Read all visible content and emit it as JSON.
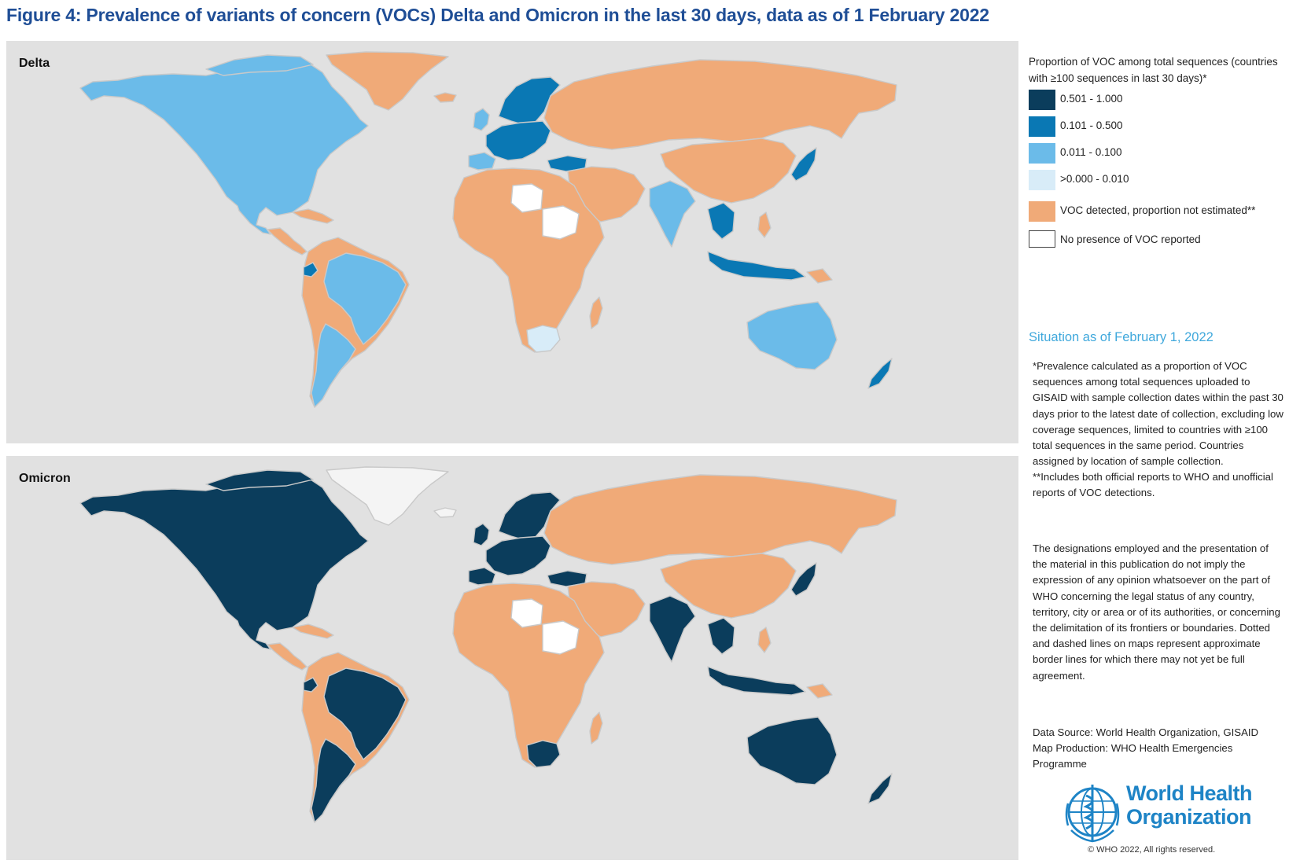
{
  "title": "Figure 4: Prevalence of variants of concern (VOCs) Delta and Omicron in the last 30 days, data as of 1 February 2022",
  "panels": {
    "delta": {
      "label": "Delta"
    },
    "omicron": {
      "label": "Omicron"
    }
  },
  "legend": {
    "title": "Proportion of VOC among total sequences (countries with ≥100 sequences in last 30 days)*",
    "items": [
      {
        "label": "0.501 - 1.000",
        "color": "#0b3d5c"
      },
      {
        "label": "0.101 - 0.500",
        "color": "#0a78b4"
      },
      {
        "label": "0.011 - 0.100",
        "color": "#6bbbe9"
      },
      {
        "label": ">0.000 - 0.010",
        "color": "#d8ecf8"
      },
      {
        "label": "VOC detected, proportion not estimated**",
        "color": "#f0aa78"
      },
      {
        "label": "No presence of VOC reported",
        "color": "#ffffff"
      }
    ]
  },
  "colors": {
    "ocean": "#e1e1e1",
    "not_applicable": "#f4f4f4",
    "border": "#c9c9c9"
  },
  "map_data": {
    "delta": {
      "north_america": "0.011 - 0.100",
      "greenland": "VOC detected, proportion not estimated**",
      "central_america_caribbean": "VOC detected, proportion not estimated**",
      "south_america": "VOC detected, proportion not estimated**",
      "brazil": "0.011 - 0.100",
      "argentina_chile": "0.011 - 0.100",
      "ecuador": "0.101 - 0.500",
      "uk_ireland": "0.011 - 0.100",
      "western_europe": "0.101 - 0.500",
      "nordics": "0.101 - 0.500",
      "iberia": "0.011 - 0.100",
      "russia": "VOC detected, proportion not estimated**",
      "turkey": "0.101 - 0.500",
      "middle_east": "VOC detected, proportion not estimated**",
      "africa": "VOC detected, proportion not estimated**",
      "south_africa": ">0.000 - 0.010",
      "libya": "No presence of VOC reported",
      "chad_sudan": "No presence of VOC reported",
      "india": "0.011 - 0.100",
      "china": "VOC detected, proportion not estimated**",
      "japan": "0.101 - 0.500",
      "southeast_asia": "0.101 - 0.500",
      "australia": "0.011 - 0.100",
      "new_zealand": "0.101 - 0.500"
    },
    "omicron": {
      "north_america": "0.501 - 1.000",
      "greenland": "not applicable",
      "central_america_caribbean": "VOC detected, proportion not estimated**",
      "south_america": "VOC detected, proportion not estimated**",
      "brazil": "0.501 - 1.000",
      "argentina_chile": "0.501 - 1.000",
      "ecuador": "0.501 - 1.000",
      "uk_ireland": "0.501 - 1.000",
      "western_europe": "0.501 - 1.000",
      "nordics": "0.501 - 1.000",
      "iberia": "0.501 - 1.000",
      "russia": "VOC detected, proportion not estimated**",
      "turkey": "0.501 - 1.000",
      "middle_east": "VOC detected, proportion not estimated**",
      "africa": "VOC detected, proportion not estimated**",
      "south_africa": "0.501 - 1.000",
      "libya": "No presence of VOC reported",
      "chad_sudan": "No presence of VOC reported",
      "india": "0.501 - 1.000",
      "china": "VOC detected, proportion not estimated**",
      "japan": "0.501 - 1.000",
      "southeast_asia": "0.501 - 1.000",
      "australia": "0.501 - 1.000",
      "new_zealand": "0.501 - 1.000"
    }
  },
  "situation": "Situation as of February 1, 2022",
  "notes": {
    "footnote_1": "*Prevalence calculated as a proportion of VOC sequences among total sequences uploaded to GISAID with sample collection dates within the past 30 days prior to the latest date of collection, excluding low coverage sequences, limited to countries with ≥100 total sequences in the same period. Countries assigned by location of sample collection.",
    "footnote_2": "**Includes both official reports to WHO and unofficial reports of VOC detections.",
    "disclaimer": "The designations employed and the presentation of the material in this publication do not imply the expression of any opinion whatsoever on the part of WHO concerning the legal status of any country, territory, city or area or of its authorities, or concerning the delimitation of its frontiers or boundaries. Dotted and dashed lines on maps represent approximate border lines for which there may not yet be full agreement.",
    "data_source": "Data Source: World Health Organization, GISAID",
    "map_production": "Map Production: WHO Health Emergencies Programme"
  },
  "who": {
    "name_line1": "World Health",
    "name_line2": "Organization",
    "copyright": "© WHO 2022, All rights reserved."
  }
}
